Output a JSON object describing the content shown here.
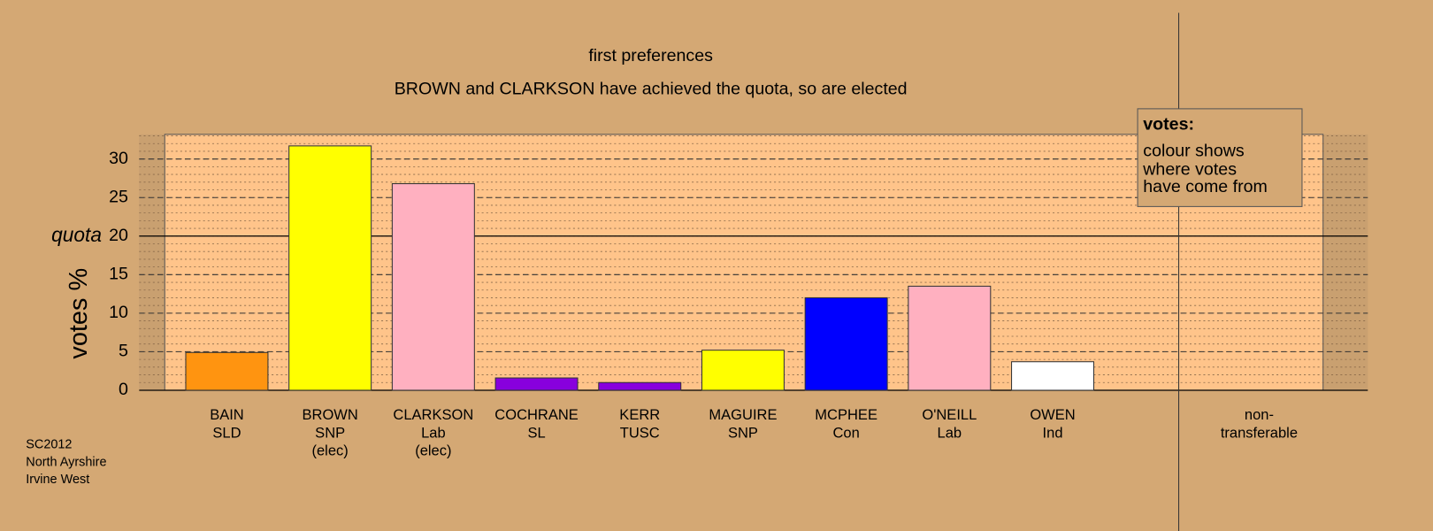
{
  "chart_data": {
    "type": "bar",
    "title": "first preferences",
    "subtitle": "BROWN and CLARKSON have achieved the quota, so are elected",
    "y_label": "votes %",
    "categories": [
      [
        "BAIN",
        "SLD"
      ],
      [
        "BROWN",
        "SNP",
        "(elec)"
      ],
      [
        "CLARKSON",
        "Lab",
        "(elec)"
      ],
      [
        "COCHRANE",
        "SL"
      ],
      [
        "KERR",
        "TUSC"
      ],
      [
        "MAGUIRE",
        "SNP"
      ],
      [
        "MCPHEE",
        "Con"
      ],
      [
        "O'NEILL",
        "Lab"
      ],
      [
        "OWEN",
        "Ind"
      ],
      null,
      [
        "non-",
        "transferable"
      ]
    ],
    "values": [
      4.9,
      31.7,
      26.8,
      1.6,
      1.0,
      5.2,
      12.0,
      13.5,
      3.7,
      null,
      null
    ],
    "colors": [
      "#ff9410",
      "#ffff00",
      "#ffb0c0",
      "#8800dd",
      "#8800dd",
      "#ffff00",
      "#0000ff",
      "#ffb0c0",
      "#ffffff",
      null,
      null
    ],
    "ylim": [
      0,
      33.2
    ],
    "yticks": [
      0,
      5,
      10,
      15,
      20,
      25,
      30
    ],
    "minor_grid": 1,
    "quota": 20,
    "quota_label": "quota",
    "legend": {
      "title": "votes:",
      "lines": [
        "colour shows",
        "where votes",
        "have come from"
      ]
    },
    "footer": [
      "SC2012",
      "North Ayrshire",
      "Irvine West"
    ]
  }
}
